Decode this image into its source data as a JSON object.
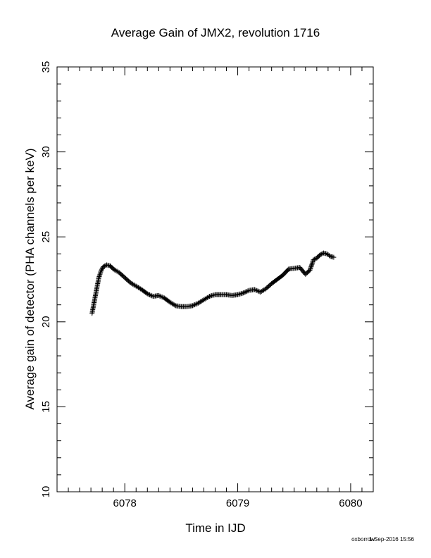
{
  "chart_data": {
    "type": "scatter",
    "title": "Average Gain of JMX2, revolution 1716",
    "xlabel": "Time in IJD",
    "ylabel": "Average gain of detector (PHA channels per keV)",
    "xlim": [
      6077.4,
      6080.2
    ],
    "ylim": [
      10,
      35
    ],
    "x_major_ticks": [
      6078,
      6079,
      6080
    ],
    "x_minor_step": 0.1,
    "y_major_ticks": [
      10,
      15,
      20,
      25,
      30,
      35
    ],
    "y_minor_step": 1,
    "marker": "plus",
    "grid": false,
    "color": "#000000",
    "series": [
      {
        "x": [
          6077.71,
          6077.73,
          6077.75,
          6077.77,
          6077.79,
          6077.81,
          6077.84,
          6077.87,
          6077.9,
          6077.95,
          6078.0,
          6078.05,
          6078.1,
          6078.15,
          6078.2,
          6078.25,
          6078.3,
          6078.35,
          6078.4,
          6078.45,
          6078.5,
          6078.55,
          6078.6,
          6078.65,
          6078.7,
          6078.75,
          6078.8,
          6078.85,
          6078.9,
          6078.95,
          6079.0,
          6079.05,
          6079.1,
          6079.15,
          6079.2,
          6079.25,
          6079.3,
          6079.35,
          6079.4,
          6079.45,
          6079.5,
          6079.55,
          6079.6,
          6079.64,
          6079.67,
          6079.7,
          6079.73,
          6079.76,
          6079.79,
          6079.82,
          6079.85
        ],
        "y": [
          20.5,
          21.2,
          21.9,
          22.6,
          23.0,
          23.25,
          23.35,
          23.3,
          23.1,
          22.9,
          22.6,
          22.3,
          22.1,
          21.9,
          21.65,
          21.5,
          21.55,
          21.4,
          21.15,
          20.95,
          20.9,
          20.9,
          20.95,
          21.1,
          21.3,
          21.5,
          21.6,
          21.6,
          21.6,
          21.55,
          21.6,
          21.7,
          21.85,
          21.9,
          21.75,
          21.95,
          22.25,
          22.5,
          22.75,
          23.1,
          23.15,
          23.2,
          22.8,
          23.05,
          23.65,
          23.75,
          23.95,
          24.05,
          24.0,
          23.85,
          23.8
        ]
      }
    ]
  },
  "footer": {
    "user": "oxborrow",
    "timestamp": "1-Sep-2016 15:56"
  }
}
